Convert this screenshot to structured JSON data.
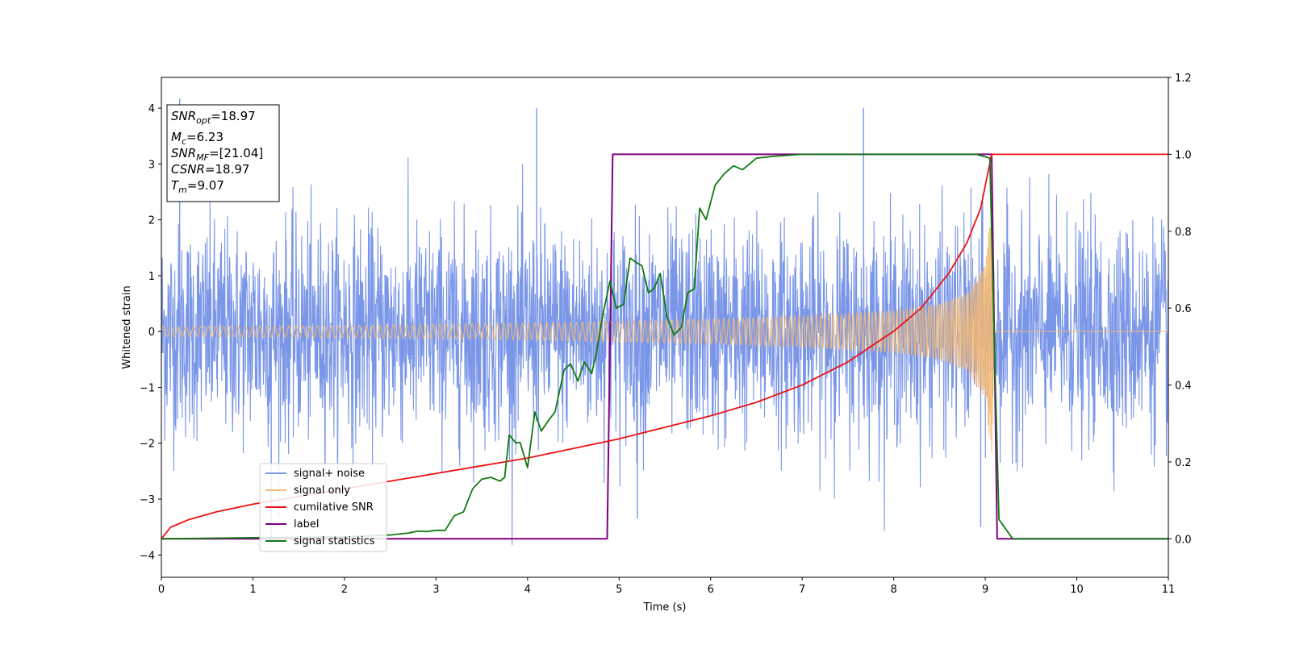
{
  "chart_data": {
    "type": "line",
    "title": "",
    "xlabel": "Time (s)",
    "ylabel": "Whitened strain",
    "y2label": "",
    "xlim": [
      0,
      11
    ],
    "ylim": [
      -4.4,
      4.55
    ],
    "y2lim": [
      -0.1,
      1.2
    ],
    "xticks": [
      0,
      1,
      2,
      3,
      4,
      5,
      6,
      7,
      8,
      9,
      10,
      11
    ],
    "yticks": [
      -4,
      -3,
      -2,
      -1,
      0,
      1,
      2,
      3,
      4
    ],
    "y2ticks": [
      "0.0",
      "0.2",
      "0.4",
      "0.6",
      "0.8",
      "1.0",
      "1.2"
    ],
    "y2tick_values": [
      0.0,
      0.2,
      0.4,
      0.6,
      0.8,
      1.0,
      1.2
    ],
    "legend_position": "lower-left",
    "info_box": {
      "position": "top-left",
      "lines": [
        {
          "name": "SNR",
          "sub": "opt",
          "value": "=18.97"
        },
        {
          "name": "M",
          "sub": "c",
          "value": "=6.23"
        },
        {
          "name": "SNR",
          "sub": "MF",
          "value": "=[21.04]"
        },
        {
          "name": "CSNR",
          "sub": "",
          "value": "=18.97"
        },
        {
          "name": "T",
          "sub": "m",
          "value": "=9.07"
        }
      ]
    },
    "series": [
      {
        "name": "signal+ noise",
        "color": "#7a96e8",
        "axis": "left",
        "description": "white noise, roughly within ±2.5 with spikes up to ±4",
        "peaks": [
          [
            0.2,
            4.17
          ],
          [
            4.1,
            4.0
          ],
          [
            7.67,
            4.0
          ],
          [
            1.2,
            -3.8
          ],
          [
            5.2,
            -3.35
          ],
          [
            8.95,
            -3.5
          ]
        ]
      },
      {
        "name": "signal only",
        "color": "#f5b870",
        "axis": "left",
        "description": "chirp oscillation, amplitude grows toward merger",
        "envelope": {
          "x": [
            0,
            2,
            4,
            6,
            7,
            8,
            8.5,
            8.8,
            9.0,
            9.07,
            9.1,
            11
          ],
          "amp": [
            0.09,
            0.11,
            0.15,
            0.22,
            0.28,
            0.38,
            0.5,
            0.7,
            1.2,
            2.3,
            0.0,
            0.0
          ]
        }
      },
      {
        "name": "cumilative SNR",
        "color": "#ee1111",
        "axis": "right",
        "x": [
          0,
          0.1,
          0.3,
          0.6,
          1,
          1.5,
          2,
          2.5,
          3,
          3.5,
          4,
          4.5,
          5,
          5.5,
          6,
          6.5,
          7,
          7.5,
          8,
          8.3,
          8.6,
          8.8,
          8.95,
          9.07,
          9.1,
          11
        ],
        "values": [
          0.0,
          0.03,
          0.05,
          0.07,
          0.09,
          0.11,
          0.13,
          0.15,
          0.17,
          0.19,
          0.21,
          0.235,
          0.26,
          0.29,
          0.32,
          0.355,
          0.4,
          0.46,
          0.54,
          0.6,
          0.69,
          0.77,
          0.86,
          1.0,
          1.0,
          1.0
        ]
      },
      {
        "name": "label",
        "color": "#800080",
        "axis": "right",
        "x": [
          0,
          4.87,
          4.93,
          9.07,
          9.13,
          11
        ],
        "values": [
          0,
          0,
          1,
          1,
          0,
          0
        ]
      },
      {
        "name": "signal statistics",
        "color": "#117a11",
        "axis": "right",
        "x": [
          0,
          1,
          2,
          2.5,
          2.7,
          2.8,
          2.9,
          3.0,
          3.1,
          3.2,
          3.3,
          3.4,
          3.5,
          3.6,
          3.7,
          3.75,
          3.8,
          3.87,
          3.92,
          4.0,
          4.08,
          4.15,
          4.22,
          4.3,
          4.4,
          4.47,
          4.55,
          4.62,
          4.7,
          4.75,
          4.82,
          4.9,
          4.97,
          5.05,
          5.12,
          5.18,
          5.25,
          5.32,
          5.38,
          5.45,
          5.52,
          5.6,
          5.68,
          5.75,
          5.82,
          5.88,
          5.95,
          6.05,
          6.15,
          6.25,
          6.35,
          6.5,
          6.7,
          7.0,
          7.5,
          8.0,
          8.5,
          8.9,
          9.05,
          9.1,
          9.15,
          9.3,
          11
        ],
        "values": [
          0.0,
          0.003,
          0.005,
          0.01,
          0.015,
          0.02,
          0.019,
          0.022,
          0.022,
          0.06,
          0.07,
          0.13,
          0.155,
          0.16,
          0.15,
          0.16,
          0.27,
          0.25,
          0.25,
          0.185,
          0.33,
          0.28,
          0.305,
          0.33,
          0.44,
          0.455,
          0.41,
          0.46,
          0.43,
          0.48,
          0.58,
          0.67,
          0.6,
          0.61,
          0.73,
          0.72,
          0.71,
          0.64,
          0.65,
          0.69,
          0.58,
          0.53,
          0.55,
          0.64,
          0.65,
          0.86,
          0.83,
          0.92,
          0.95,
          0.97,
          0.96,
          0.99,
          0.995,
          1.0,
          1.0,
          1.0,
          1.0,
          1.0,
          0.99,
          0.5,
          0.05,
          0.0,
          0.0
        ]
      }
    ]
  }
}
